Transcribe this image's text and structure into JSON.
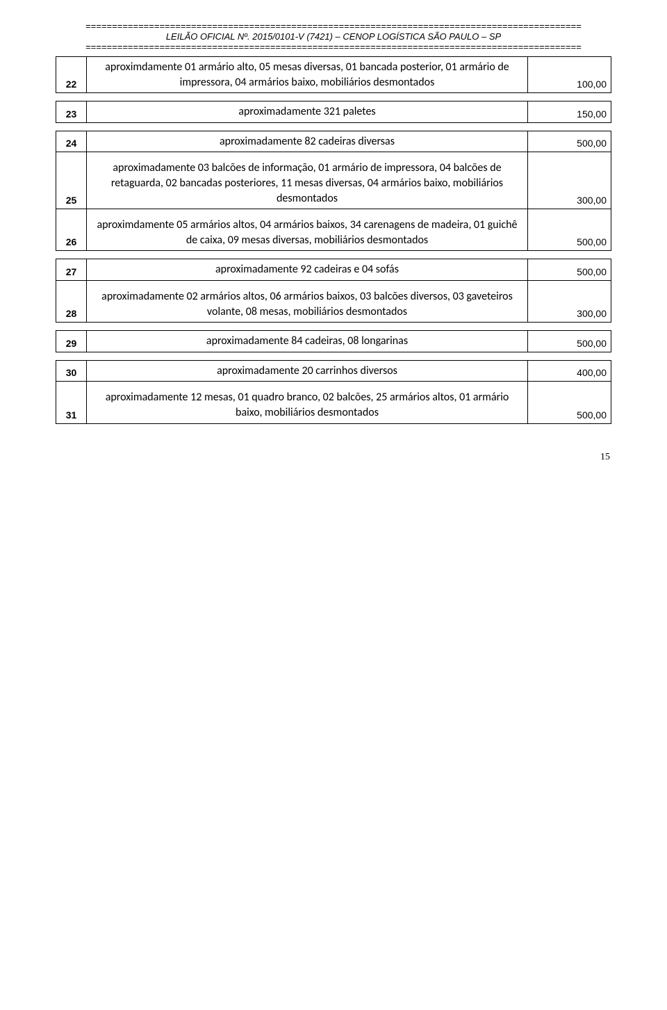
{
  "header": {
    "divider_line": "==============================================================================================",
    "title": "LEILÃO OFICIAL Nº. 2015/0101-V (7421) – CENOP LOGÍSTICA SÃO PAULO – SP"
  },
  "rows": [
    {
      "num": "22",
      "desc": "aproximdamente 01 armário alto, 05 mesas diversas, 01 bancada posterior, 01 armário de impressora, 04 armários baixo, mobiliários desmontados",
      "price": "100,00",
      "tall": true
    },
    {
      "num": "23",
      "desc": "aproximadamente 321 paletes",
      "price": "150,00",
      "tall": true,
      "newgroup": true
    },
    {
      "num": "24",
      "desc": "aproximadamente 82 cadeiras diversas",
      "price": "500,00",
      "tall": true,
      "newgroup": true
    },
    {
      "num": "25",
      "desc": "aproximadamente 03 balcões de informação, 01 armário de impressora, 04 balcões de retaguarda, 02 bancadas posteriores, 11 mesas diversas, 04 armários baixo, mobiliários desmontados",
      "price": "300,00",
      "tall": false
    },
    {
      "num": "26",
      "desc": "aproximdamente 05 armários altos, 04 armários baixos, 34 carenagens de madeira, 01 guichê de caixa, 09 mesas diversas, mobiliários desmontados",
      "price": "500,00",
      "tall": false
    },
    {
      "num": "27",
      "desc": "aproximadamente 92 cadeiras e 04 sofás",
      "price": "500,00",
      "tall": true,
      "newgroup": true
    },
    {
      "num": "28",
      "desc": "aproximadamente 02 armários altos, 06 armários baixos, 03 balcões diversos, 03 gaveteiros volante, 08 mesas, mobiliários desmontados",
      "price": "300,00",
      "tall": false
    },
    {
      "num": "29",
      "desc": "aproximadamente 84 cadeiras, 08 longarinas",
      "price": "500,00",
      "tall": true,
      "newgroup": true
    },
    {
      "num": "30",
      "desc": "aproximadamente 20 carrinhos diversos",
      "price": "400,00",
      "tall": true,
      "newgroup": true
    },
    {
      "num": "31",
      "desc": "aproximadamente 12 mesas, 01 quadro branco, 02 balcões, 25 armários altos, 01 armário baixo, mobiliários desmontados",
      "price": "500,00",
      "tall": false
    }
  ],
  "page_number": "15",
  "style": {
    "background_color": "#ffffff",
    "text_color": "#000000",
    "border_color": "#000000",
    "desc_font": "Calibri",
    "num_font": "Arial",
    "pagenum_font": "Times New Roman"
  }
}
